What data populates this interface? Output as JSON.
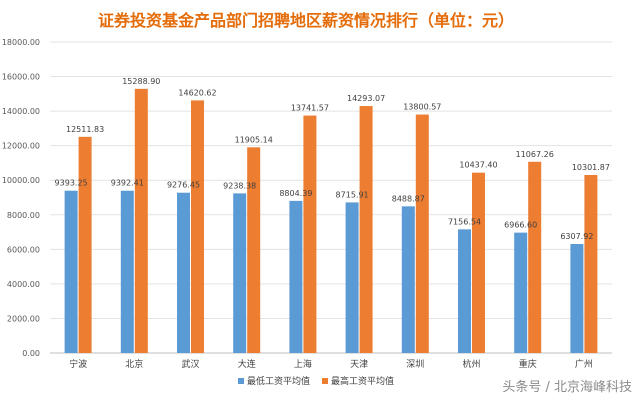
{
  "chart_data": {
    "type": "bar",
    "title": "证券投资基金产品部门招聘地区薪资情况排行（单位：元）",
    "categories": [
      "宁波",
      "北京",
      "武汉",
      "大连",
      "上海",
      "天津",
      "深圳",
      "杭州",
      "重庆",
      "广州"
    ],
    "series": [
      {
        "name": "最低工资平均值",
        "color": "#5B9BD5",
        "values": [
          9393.25,
          9392.41,
          9276.45,
          9238.38,
          8804.39,
          8715.91,
          8488.87,
          7156.54,
          6966.6,
          6307.92
        ],
        "labels": [
          "9393.25",
          "9392.41",
          "9276.45",
          "9238.38",
          "8804.39",
          "8715.91",
          "8488.87",
          "7156.54",
          "6966.60",
          "6307.92"
        ]
      },
      {
        "name": "最高工资平均值",
        "color": "#ED7D31",
        "values": [
          12511.83,
          15288.9,
          14620.62,
          11905.14,
          13741.57,
          14293.07,
          13800.57,
          10437.4,
          11067.26,
          10301.87
        ],
        "labels": [
          "12511.83",
          "15288.90",
          "14620.62",
          "11905.14",
          "13741.57",
          "14293.07",
          "13800.57",
          "10437.40",
          "11067.26",
          "10301.87"
        ]
      }
    ],
    "yticks": [
      "0.00",
      "2000.00",
      "4000.00",
      "6000.00",
      "8000.00",
      "10000.00",
      "12000.00",
      "14000.00",
      "16000.00",
      "18000.00"
    ],
    "ylim": [
      0,
      18000
    ],
    "grid": true,
    "legend": "bottom-center",
    "title_color": "#E46C0A"
  },
  "watermark": "头条号 / 北京海峰科技"
}
